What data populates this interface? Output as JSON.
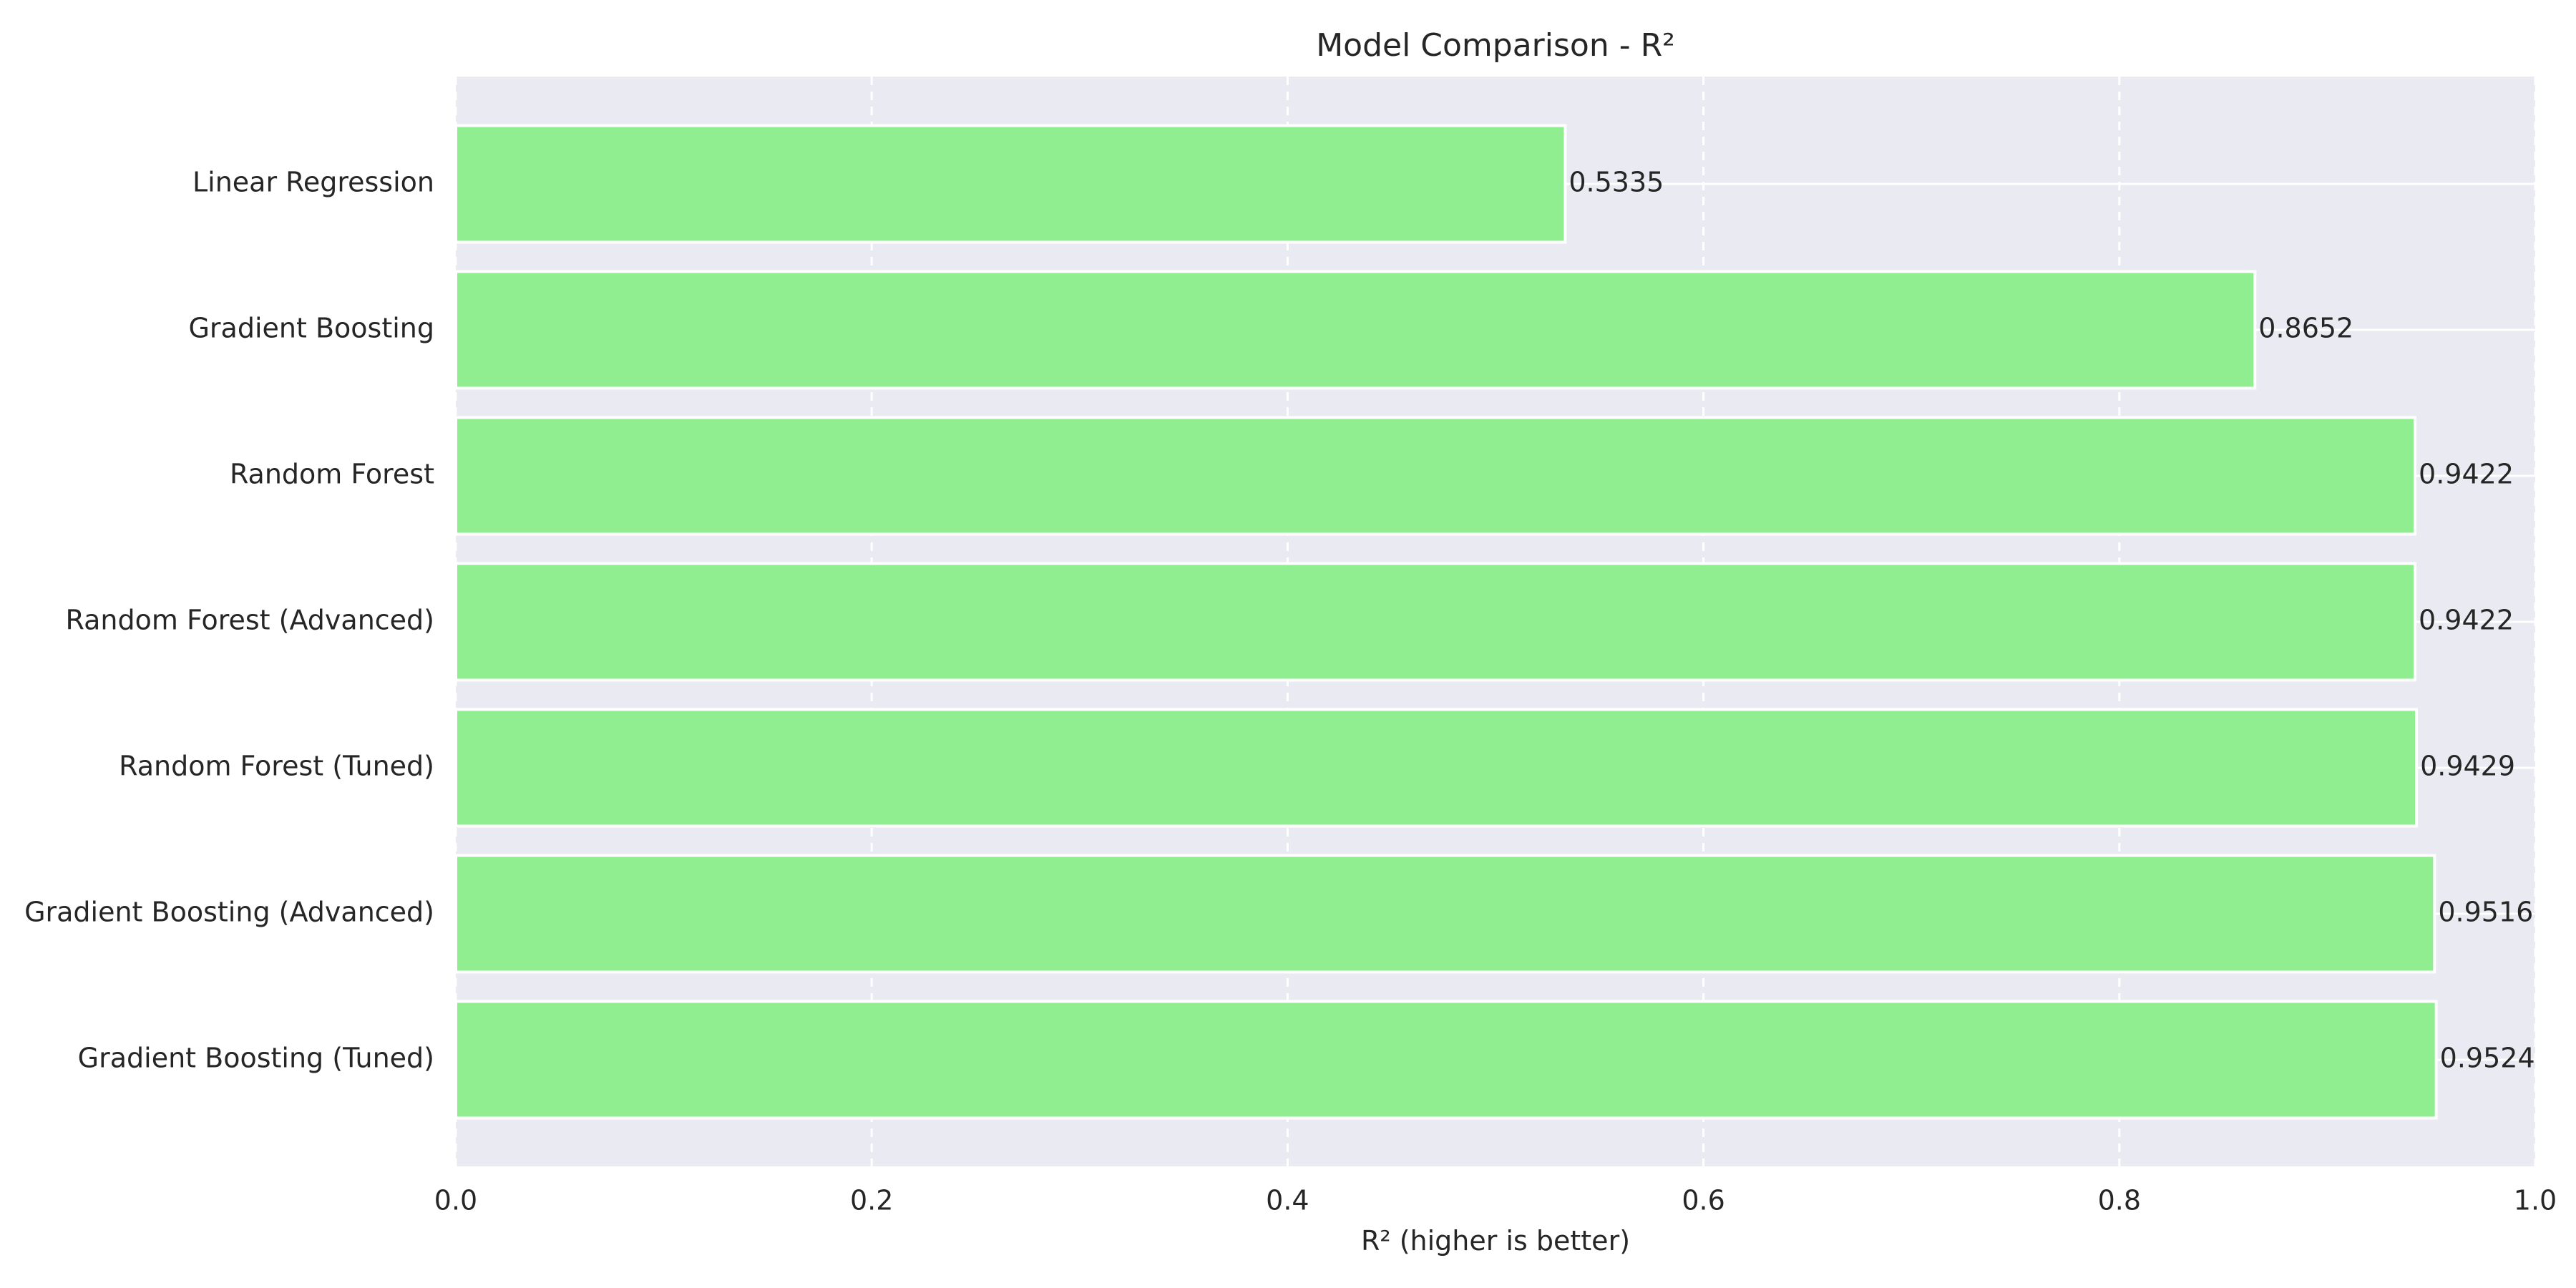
{
  "chart_data": {
    "type": "bar",
    "orientation": "horizontal",
    "title": "Model Comparison - R²",
    "xlabel": "R² (higher is better)",
    "ylabel": "",
    "xlim": [
      0,
      1.0
    ],
    "x_ticks": [
      "0.0",
      "0.2",
      "0.4",
      "0.6",
      "0.8",
      "1.0"
    ],
    "x_tick_values": [
      0.0,
      0.2,
      0.4,
      0.6,
      0.8,
      1.0
    ],
    "grid": "on (x dashed, y solid)",
    "categories": [
      "Linear Regression",
      "Gradient Boosting",
      "Random Forest",
      "Random Forest (Advanced)",
      "Random Forest (Tuned)",
      "Gradient Boosting (Advanced)",
      "Gradient Boosting (Tuned)"
    ],
    "values": [
      0.5335,
      0.8652,
      0.9422,
      0.9422,
      0.9429,
      0.9516,
      0.9524
    ],
    "value_labels": [
      "0.5335",
      "0.8652",
      "0.9422",
      "0.9422",
      "0.9429",
      "0.9516",
      "0.9524"
    ]
  },
  "colors": {
    "bar": "#90ee90",
    "plot_background": "#eaeaf2",
    "grid": "#ffffff",
    "text": "#262626"
  }
}
